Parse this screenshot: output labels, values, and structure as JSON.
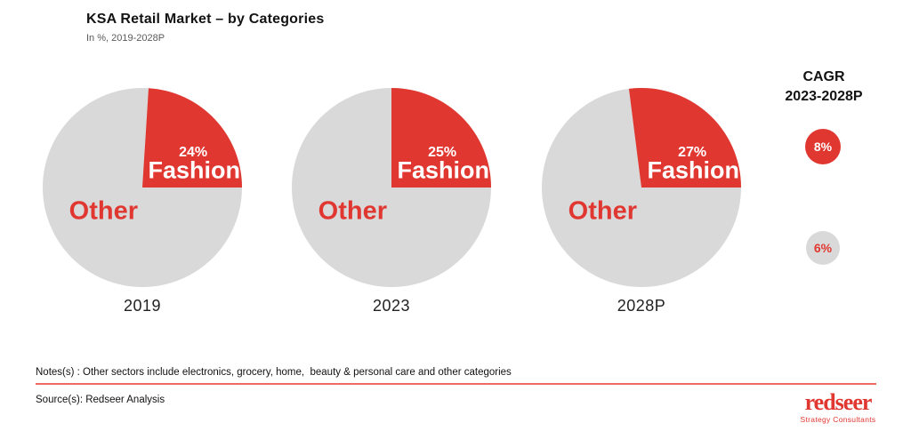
{
  "header": {
    "title": "KSA Retail Market – by Categories",
    "subtitle": "In %, 2019-2028P"
  },
  "chart_data": {
    "type": "pie",
    "title": "KSA Retail Market – by Categories",
    "units_note": "In %, 2019-2028P",
    "colors": {
      "fashion": "#e13731",
      "other": "#d9d9d9"
    },
    "pies": [
      {
        "year": "2019",
        "slices": [
          {
            "label": "Fashion",
            "value": 24,
            "display": "24%"
          },
          {
            "label": "Other",
            "value": 76
          }
        ]
      },
      {
        "year": "2023",
        "slices": [
          {
            "label": "Fashion",
            "value": 25,
            "display": "25%"
          },
          {
            "label": "Other",
            "value": 75
          }
        ]
      },
      {
        "year": "2028P",
        "slices": [
          {
            "label": "Fashion",
            "value": 27,
            "display": "27%"
          },
          {
            "label": "Other",
            "value": 73
          }
        ]
      }
    ],
    "cagr": {
      "heading_line1": "CAGR",
      "heading_line2": "2023-2028P",
      "items": [
        {
          "series": "Fashion",
          "label": "8%",
          "fill": "#e13731",
          "text_color": "#ffffff"
        },
        {
          "series": "Other",
          "label": "6%",
          "fill": "#d9d9d9",
          "text_color": "#e13731"
        }
      ]
    }
  },
  "footer": {
    "notes": "Notes(s) : Other sectors include electronics, grocery, home,  beauty & personal care and other categories",
    "source": "Source(s): Redseer Analysis",
    "divider_color": "#ef6a60"
  },
  "logo": {
    "name": "redseer",
    "tagline": "Strategy Consultants",
    "color": "#e13731"
  }
}
